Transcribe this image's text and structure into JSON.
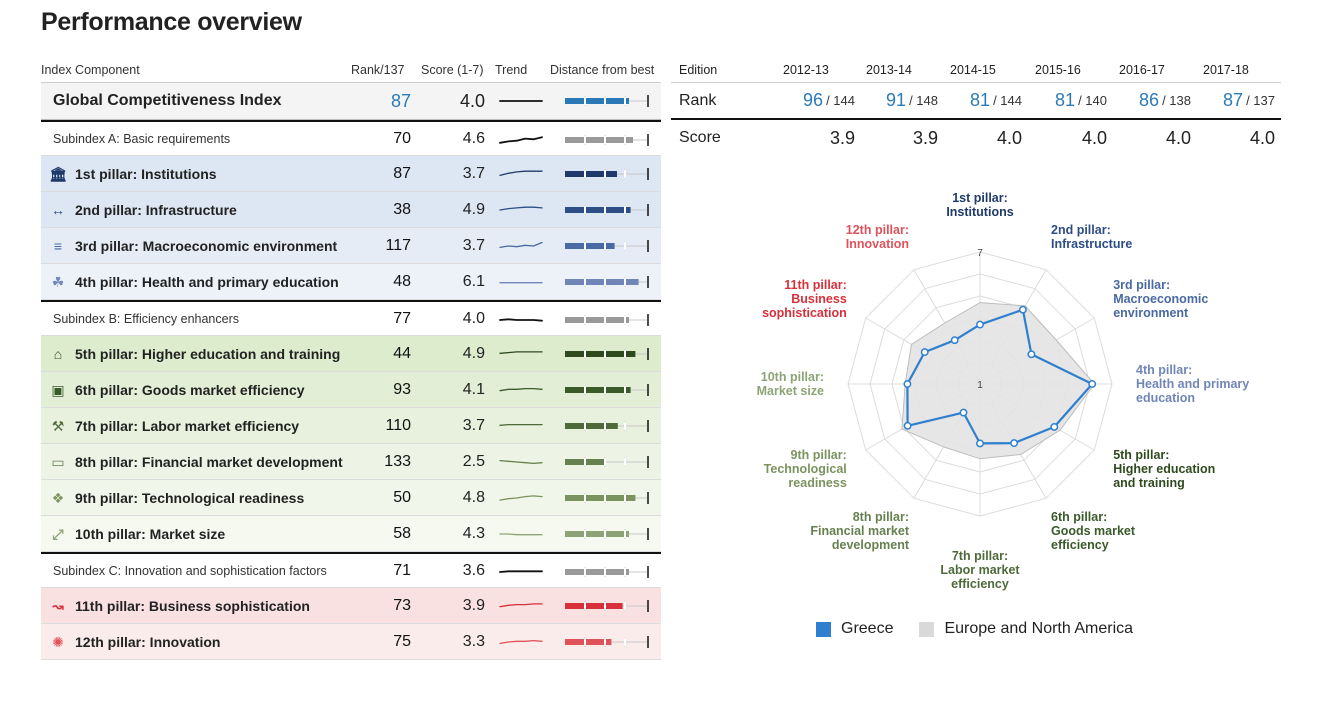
{
  "page_title": "Performance overview",
  "table_headers": {
    "component": "Index Component",
    "rank": "Rank/137",
    "score": "Score (1-7)",
    "trend": "Trend",
    "distance": "Distance from best"
  },
  "rows": [
    {
      "label": "Global Competitiveness Index",
      "rank": "87",
      "score": "4.0",
      "kind": "gci",
      "icon": "",
      "color": "#2a7ab8",
      "bg": "#f4f4f4",
      "trend": [
        0.5,
        0.5,
        0.5,
        0.5,
        0.5,
        0.5
      ],
      "dist": 0.8
    },
    {
      "label": "Subindex A: Basic requirements",
      "rank": "70",
      "score": "4.6",
      "kind": "sub",
      "icon": "",
      "color": "#999999",
      "bg": "#ffffff",
      "trend": [
        0.7,
        0.6,
        0.55,
        0.4,
        0.45,
        0.3
      ],
      "dist": 0.85
    },
    {
      "label": "1st pillar: Institutions",
      "rank": "87",
      "score": "3.7",
      "kind": "pillar",
      "icon": "institution-icon",
      "color": "#1f3a6b",
      "bg": "#dde6f3",
      "trend": [
        0.6,
        0.45,
        0.35,
        0.3,
        0.3,
        0.3
      ],
      "dist": 0.65
    },
    {
      "label": "2nd pillar: Infrastructure",
      "rank": "38",
      "score": "4.9",
      "kind": "pillar",
      "icon": "bridge-icon",
      "color": "#2d4d86",
      "bg": "#dde6f3",
      "trend": [
        0.5,
        0.4,
        0.35,
        0.3,
        0.3,
        0.35
      ],
      "dist": 0.82
    },
    {
      "label": "3rd pillar: Macroeconomic environment",
      "rank": "117",
      "score": "3.7",
      "kind": "pillar",
      "icon": "coins-icon",
      "color": "#4a6aa3",
      "bg": "#e6ecf6",
      "trend": [
        0.6,
        0.5,
        0.55,
        0.45,
        0.5,
        0.25
      ],
      "dist": 0.62
    },
    {
      "label": "4th pillar: Health and primary education",
      "rank": "48",
      "score": "6.1",
      "kind": "pillar",
      "icon": "apple-icon",
      "color": "#7186b8",
      "bg": "#edf1f8",
      "trend": [
        0.55,
        0.55,
        0.55,
        0.55,
        0.55,
        0.55
      ],
      "dist": 0.92
    },
    {
      "label": "Subindex B: Efficiency enhancers",
      "rank": "77",
      "score": "4.0",
      "kind": "sub",
      "icon": "",
      "color": "#999999",
      "bg": "#ffffff",
      "trend": [
        0.5,
        0.45,
        0.5,
        0.5,
        0.5,
        0.55
      ],
      "dist": 0.8
    },
    {
      "label": "5th pillar: Higher education and training",
      "rank": "44",
      "score": "4.9",
      "kind": "pillar",
      "icon": "graduation-cap-icon",
      "color": "#2f4a1f",
      "bg": "#dceccd",
      "trend": [
        0.45,
        0.4,
        0.35,
        0.35,
        0.35,
        0.35
      ],
      "dist": 0.88
    },
    {
      "label": "6th pillar: Goods market efficiency",
      "rank": "93",
      "score": "4.1",
      "kind": "pillar",
      "icon": "box-icon",
      "color": "#3b5a2a",
      "bg": "#e2efd6",
      "trend": [
        0.55,
        0.45,
        0.45,
        0.4,
        0.4,
        0.45
      ],
      "dist": 0.82
    },
    {
      "label": "7th pillar: Labor market efficiency",
      "rank": "110",
      "score": "3.7",
      "kind": "pillar",
      "icon": "worker-icon",
      "color": "#4e6a3a",
      "bg": "#e7f1dd",
      "trend": [
        0.45,
        0.4,
        0.4,
        0.4,
        0.4,
        0.4
      ],
      "dist": 0.66
    },
    {
      "label": "8th pillar: Financial market development",
      "rank": "133",
      "score": "2.5",
      "kind": "pillar",
      "icon": "wallet-icon",
      "color": "#66804f",
      "bg": "#edf4e6",
      "trend": [
        0.4,
        0.45,
        0.5,
        0.55,
        0.6,
        0.55
      ],
      "dist": 0.5
    },
    {
      "label": "9th pillar: Technological readiness",
      "rank": "50",
      "score": "4.8",
      "kind": "pillar",
      "icon": "network-icon",
      "color": "#7b935f",
      "bg": "#f1f6ea",
      "trend": [
        0.65,
        0.55,
        0.5,
        0.4,
        0.35,
        0.4
      ],
      "dist": 0.88
    },
    {
      "label": "10th pillar: Market size",
      "rank": "58",
      "score": "4.3",
      "kind": "pillar",
      "icon": "expand-icon",
      "color": "#8ea476",
      "bg": "#f5f9f0",
      "trend": [
        0.5,
        0.5,
        0.55,
        0.55,
        0.55,
        0.55
      ],
      "dist": 0.8
    },
    {
      "label": "Subindex C: Innovation and sophistication factors",
      "rank": "71",
      "score": "3.6",
      "kind": "sub",
      "icon": "",
      "color": "#999999",
      "bg": "#ffffff",
      "trend": [
        0.5,
        0.45,
        0.45,
        0.45,
        0.45,
        0.45
      ],
      "dist": 0.8
    },
    {
      "label": "11th pillar: Business sophistication",
      "rank": "73",
      "score": "3.9",
      "kind": "pillar",
      "icon": "trend-line-icon",
      "color": "#d8303a",
      "bg": "#f9e1e2",
      "trend": [
        0.55,
        0.45,
        0.4,
        0.4,
        0.35,
        0.35
      ],
      "dist": 0.72
    },
    {
      "label": "12th pillar: Innovation",
      "rank": "75",
      "score": "3.3",
      "kind": "pillar",
      "icon": "spark-icon",
      "color": "#e0525a",
      "bg": "#fbecec",
      "trend": [
        0.6,
        0.5,
        0.45,
        0.45,
        0.4,
        0.45
      ],
      "dist": 0.58
    }
  ],
  "editions": {
    "label": "Edition",
    "years": [
      "2012-13",
      "2013-14",
      "2014-15",
      "2015-16",
      "2016-17",
      "2017-18"
    ],
    "rank_label": "Rank",
    "ranks": [
      {
        "value": "96",
        "of": "/ 144"
      },
      {
        "value": "91",
        "of": "/ 148"
      },
      {
        "value": "81",
        "of": "/ 144"
      },
      {
        "value": "81",
        "of": "/ 140"
      },
      {
        "value": "86",
        "of": "/ 138"
      },
      {
        "value": "87",
        "of": "/ 137"
      }
    ],
    "score_label": "Score",
    "scores": [
      "3.9",
      "3.9",
      "4.0",
      "4.0",
      "4.0",
      "4.0"
    ]
  },
  "chart_data": {
    "type": "radar",
    "scale_min": 1,
    "scale_max": 7,
    "tick_labels": [
      "1",
      "7"
    ],
    "axes": [
      {
        "label": [
          "1st pillar:",
          "Institutions"
        ],
        "color": "#1f3a6b"
      },
      {
        "label": [
          "2nd pillar:",
          "Infrastructure"
        ],
        "color": "#2d4d86"
      },
      {
        "label": [
          "3rd pillar:",
          "Macroeconomic",
          "environment"
        ],
        "color": "#4a6aa3"
      },
      {
        "label": [
          "4th pillar:",
          "Health and primary",
          "education"
        ],
        "color": "#7186b8"
      },
      {
        "label": [
          "5th pillar:",
          "Higher education",
          "and training"
        ],
        "color": "#2f4a1f"
      },
      {
        "label": [
          "6th pillar:",
          "Goods market",
          "efficiency"
        ],
        "color": "#3b5a2a"
      },
      {
        "label": [
          "7th pillar:",
          "Labor market",
          "efficiency"
        ],
        "color": "#4e6a3a"
      },
      {
        "label": [
          "8th pillar:",
          "Financial market",
          "development"
        ],
        "color": "#66804f"
      },
      {
        "label": [
          "9th pillar:",
          "Technological",
          "readiness"
        ],
        "color": "#7b935f"
      },
      {
        "label": [
          "10th pillar:",
          "Market size"
        ],
        "color": "#8ea476"
      },
      {
        "label": [
          "11th pillar:",
          "Business",
          "sophistication"
        ],
        "color": "#d8303a"
      },
      {
        "label": [
          "12th pillar:",
          "Innovation"
        ],
        "color": "#e0525a"
      }
    ],
    "series": [
      {
        "name": "Greece",
        "color": "#2f7fcf",
        "values": [
          3.7,
          4.9,
          3.7,
          6.1,
          4.9,
          4.1,
          3.7,
          2.5,
          4.8,
          4.3,
          3.9,
          3.3
        ]
      },
      {
        "name": "Europe and North America",
        "color": "#d9d9d9",
        "values": [
          4.7,
          5.1,
          5.0,
          6.2,
          5.2,
          4.7,
          4.4,
          4.3,
          5.1,
          4.4,
          4.6,
          4.2
        ]
      }
    ]
  }
}
